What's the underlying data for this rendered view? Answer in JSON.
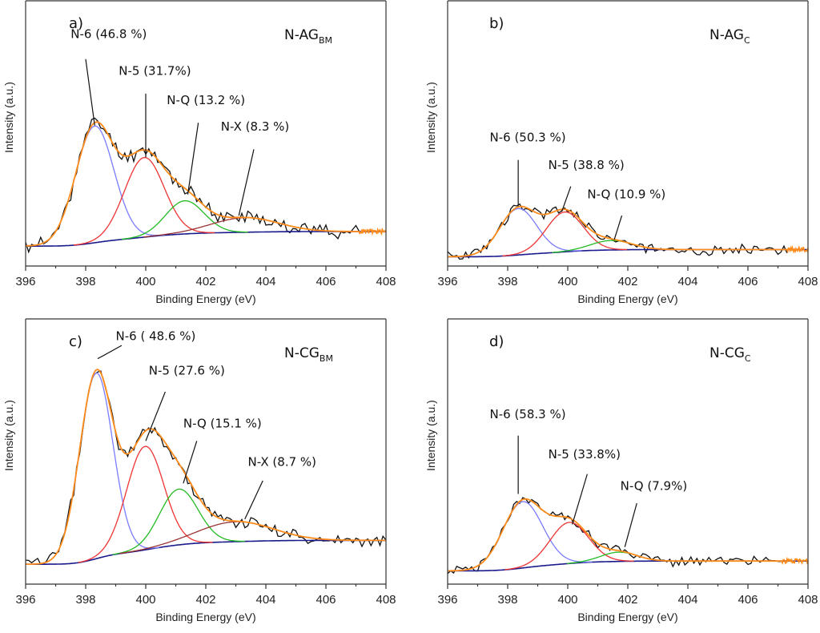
{
  "chart_data": [
    {
      "type": "line",
      "panel": "a)",
      "sample_main": "N-AG",
      "sample_sub": "BM",
      "xlabel": "Binding Energy (eV)",
      "ylabel": "Intensity (a.u.)",
      "xlim": [
        396,
        408
      ],
      "ylim": [
        0,
        100
      ],
      "xticks": [
        396,
        398,
        400,
        402,
        404,
        406,
        408
      ],
      "background": {
        "start": 7.5,
        "end": 13
      },
      "components": [
        {
          "name": "N-6",
          "label": "N-6 (46.8 %)",
          "percent": 46.8,
          "center": 398.3,
          "amplitude": 44,
          "fwhm": 1.5,
          "color": "#7b7bff"
        },
        {
          "name": "N-5",
          "label": "N-5 (31.7%)",
          "percent": 31.7,
          "center": 399.95,
          "amplitude": 30,
          "fwhm": 1.55,
          "color": "#ee3333"
        },
        {
          "name": "N-Q",
          "label": "N-Q (13.2 %)",
          "percent": 13.2,
          "center": 401.3,
          "amplitude": 12.5,
          "fwhm": 1.5,
          "color": "#22bb22"
        },
        {
          "name": "N-X",
          "label": "N-X (8.3 %)",
          "percent": 8.3,
          "center": 403.3,
          "amplitude": 5.5,
          "fwhm": 2.6,
          "color": "#993333"
        }
      ],
      "annotations": [
        {
          "text": "N-6 (46.8 %)",
          "tx": 397.5,
          "ty": 86,
          "lx1": 398.0,
          "ly1": 78,
          "lx2": 398.3,
          "ly2": 53
        },
        {
          "text": "N-5 (31.7%)",
          "tx": 399.1,
          "ty": 72,
          "lx1": 400.0,
          "ly1": 65,
          "lx2": 400.0,
          "ly2": 41
        },
        {
          "text": "N-Q (13.2 %)",
          "tx": 400.7,
          "ty": 61,
          "lx1": 401.75,
          "ly1": 54,
          "lx2": 401.4,
          "ly2": 27
        },
        {
          "text": "N-X (8.3 %)",
          "tx": 402.5,
          "ty": 51,
          "lx1": 403.6,
          "ly1": 44,
          "lx2": 403.1,
          "ly2": 19
        }
      ],
      "noise_seed": 11,
      "noise_amp": 2.2,
      "data_end": 407.1
    },
    {
      "type": "line",
      "panel": "b)",
      "sample_main": "N-AG",
      "sample_sub": "C",
      "xlabel": "Binding Energy (eV)",
      "ylabel": "Intensity (a.u.)",
      "xlim": [
        396,
        408
      ],
      "ylim": [
        0,
        100
      ],
      "xticks": [
        396,
        398,
        400,
        402,
        404,
        406,
        408
      ],
      "background": {
        "start": 3.5,
        "end": 6.2
      },
      "components": [
        {
          "name": "N-6",
          "label": "N-6 (50.3 %)",
          "percent": 50.3,
          "center": 398.35,
          "amplitude": 17.5,
          "fwhm": 1.45,
          "color": "#7b7bff"
        },
        {
          "name": "N-5",
          "label": "N-5 (38.8 %)",
          "percent": 38.8,
          "center": 399.9,
          "amplitude": 15,
          "fwhm": 1.45,
          "color": "#ee3333"
        },
        {
          "name": "N-Q",
          "label": "N-Q (10.9 %)",
          "percent": 10.9,
          "center": 401.45,
          "amplitude": 3.6,
          "fwhm": 1.6,
          "color": "#22bb22"
        }
      ],
      "annotations": [
        {
          "text": "N-6 (50.3 %)",
          "tx": 397.4,
          "ty": 47,
          "lx1": 398.35,
          "ly1": 40,
          "lx2": 398.35,
          "ly2": 22.5
        },
        {
          "text": "N-5 (38.8 %)",
          "tx": 399.35,
          "ty": 36.5,
          "lx1": 400.1,
          "ly1": 30,
          "lx2": 399.8,
          "ly2": 20.5
        },
        {
          "text": "N-Q (10.9 %)",
          "tx": 400.65,
          "ty": 25.5,
          "lx1": 401.8,
          "ly1": 19,
          "lx2": 401.55,
          "ly2": 10
        }
      ],
      "noise_seed": 23,
      "noise_amp": 1.6,
      "data_end": 407.3
    },
    {
      "type": "line",
      "panel": "c)",
      "sample_main": "N-CG",
      "sample_sub": "BM",
      "xlabel": "Binding Energy (eV)",
      "ylabel": "Intensity (a.u.)",
      "xlim": [
        396,
        408
      ],
      "ylim": [
        0,
        100
      ],
      "xticks": [
        396,
        398,
        400,
        402,
        404,
        406,
        408
      ],
      "background": {
        "start": 7.5,
        "end": 16.5
      },
      "components": [
        {
          "name": "N-6",
          "label": "N-6 ( 48.6 %)",
          "percent": 48.6,
          "center": 398.35,
          "amplitude": 70,
          "fwhm": 1.3,
          "color": "#7b7bff"
        },
        {
          "name": "N-5",
          "label": "N-5 (27.6 %)",
          "percent": 27.6,
          "center": 399.98,
          "amplitude": 39,
          "fwhm": 1.45,
          "color": "#ee3333"
        },
        {
          "name": "N-Q",
          "label": "N-Q (15.1 %)",
          "percent": 15.1,
          "center": 401.1,
          "amplitude": 21,
          "fwhm": 1.5,
          "color": "#22bb22"
        },
        {
          "name": "N-X",
          "label": "N-X (8.7 %)",
          "percent": 8.7,
          "center": 403.0,
          "amplitude": 7.5,
          "fwhm": 2.9,
          "color": "#993333"
        }
      ],
      "annotations": [
        {
          "text": "N-6 ( 48.6 %)",
          "tx": 399.0,
          "ty": 92,
          "lx1": 399.2,
          "ly1": 90,
          "lx2": 398.4,
          "ly2": 85
        },
        {
          "text": "N-5 (27.6 %)",
          "tx": 400.1,
          "ty": 79,
          "lx1": 400.65,
          "ly1": 72.5,
          "lx2": 400.0,
          "ly2": 54
        },
        {
          "text": "N-Q (15.1 %)",
          "tx": 401.25,
          "ty": 59,
          "lx1": 401.7,
          "ly1": 54,
          "lx2": 401.25,
          "ly2": 38
        },
        {
          "text": "N-X (8.7 %)",
          "tx": 403.4,
          "ty": 44.5,
          "lx1": 403.9,
          "ly1": 39,
          "lx2": 403.3,
          "ly2": 24.5
        }
      ],
      "noise_seed": 37,
      "noise_amp": 2.0,
      "data_end": 408.0
    },
    {
      "type": "line",
      "panel": "d)",
      "sample_main": "N-CG",
      "sample_sub": "C",
      "xlabel": "Binding Energy (eV)",
      "ylabel": "Intensity (a.u.)",
      "xlim": [
        396,
        408
      ],
      "ylim": [
        0,
        100
      ],
      "xticks": [
        396,
        398,
        400,
        402,
        404,
        406,
        408
      ],
      "background": {
        "start": 5.0,
        "end": 8.7
      },
      "components": [
        {
          "name": "N-6",
          "label": "N-6 (58.3 %)",
          "percent": 58.3,
          "center": 398.5,
          "amplitude": 25,
          "fwhm": 1.55,
          "color": "#7b7bff"
        },
        {
          "name": "N-5",
          "label": "N-5 (33.8 %)",
          "percent": 33.8,
          "center": 400.05,
          "amplitude": 15.5,
          "fwhm": 1.5,
          "color": "#ee3333"
        },
        {
          "name": "N-Q",
          "label": "N-Q (7.9 %)",
          "percent": 7.9,
          "center": 401.7,
          "amplitude": 3.5,
          "fwhm": 1.4,
          "color": "#22bb22"
        }
      ],
      "annotations": [
        {
          "text": "N-6 (58.3 %)",
          "tx": 397.4,
          "ty": 62.5,
          "lx1": 398.35,
          "ly1": 56,
          "lx2": 398.35,
          "ly2": 34
        },
        {
          "text": "N-5 (33.8%)",
          "tx": 399.35,
          "ty": 47.5,
          "lx1": 400.65,
          "ly1": 41.5,
          "lx2": 400.15,
          "ly2": 22.5
        },
        {
          "text": "N-Q (7.9%)",
          "tx": 401.75,
          "ty": 35.5,
          "lx1": 402.3,
          "ly1": 30.5,
          "lx2": 401.9,
          "ly2": 14
        }
      ],
      "noise_seed": 51,
      "noise_amp": 1.5,
      "data_end": 407.1
    }
  ]
}
